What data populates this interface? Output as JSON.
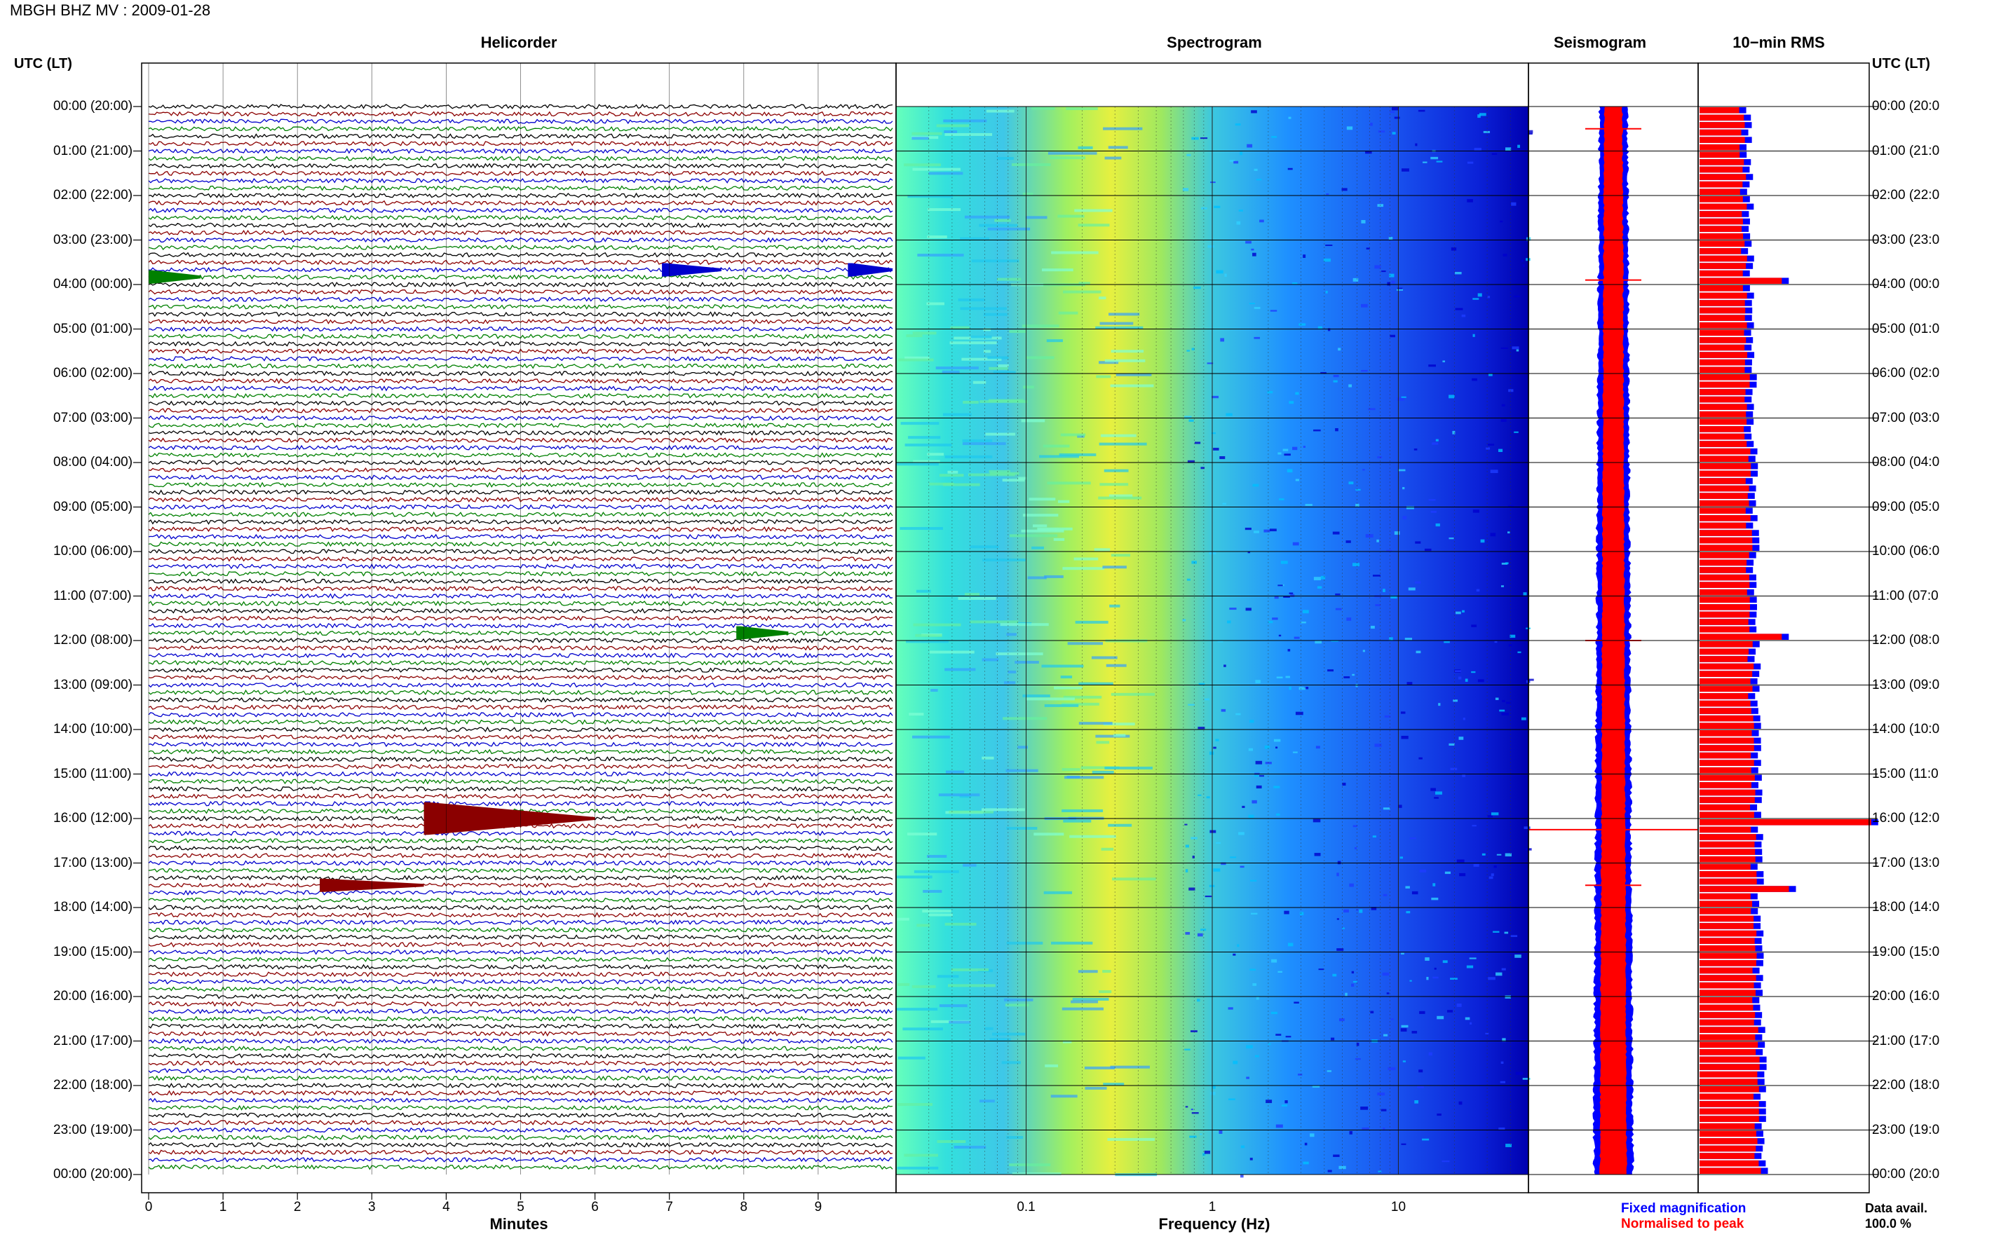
{
  "title": "MBGH BHZ MV : 2009-01-28",
  "panel_titles": {
    "helicorder": "Helicorder",
    "spectrogram": "Spectrogram",
    "seismogram": "Seismogram",
    "rms": "10−min RMS"
  },
  "utc_header": "UTC (LT)",
  "time_labels": [
    "00:00 (20:00)",
    "01:00 (21:00)",
    "02:00 (22:00)",
    "03:00 (23:00)",
    "04:00 (00:00)",
    "05:00 (01:00)",
    "06:00 (02:00)",
    "07:00 (03:00)",
    "08:00 (04:00)",
    "09:00 (05:00)",
    "10:00 (06:00)",
    "11:00 (07:00)",
    "12:00 (08:00)",
    "13:00 (09:00)",
    "14:00 (10:00)",
    "15:00 (11:00)",
    "16:00 (12:00)",
    "17:00 (13:00)",
    "18:00 (14:00)",
    "19:00 (15:00)",
    "20:00 (16:00)",
    "21:00 (17:00)",
    "22:00 (18:00)",
    "23:00 (19:00)",
    "00:00 (20:00)"
  ],
  "right_time_labels": [
    "00:00 (20:0",
    "01:00 (21:0",
    "02:00 (22:0",
    "03:00 (23:0",
    "04:00 (00:0",
    "05:00 (01:0",
    "06:00 (02:0",
    "07:00 (03:0",
    "08:00 (04:0",
    "09:00 (05:0",
    "10:00 (06:0",
    "11:00 (07:0",
    "12:00 (08:0",
    "13:00 (09:0",
    "14:00 (10:0",
    "15:00 (11:0",
    "16:00 (12:0",
    "17:00 (13:0",
    "18:00 (14:0",
    "19:00 (15:0",
    "20:00 (16:0",
    "21:00 (17:0",
    "22:00 (18:0",
    "23:00 (19:0",
    "00:00 (20:0"
  ],
  "legend": {
    "fixed": "Fixed magnification",
    "normalised": "Normalised to peak",
    "fixed_color": "#0000ff",
    "normalised_color": "#ff0000"
  },
  "data_avail": {
    "label": "Data avail.",
    "value": "100.0 %"
  },
  "chart_data": [
    {
      "type": "line",
      "panel": "helicorder",
      "xlabel": "Minutes",
      "x_ticks": [
        "0",
        "1",
        "2",
        "3",
        "4",
        "5",
        "6",
        "7",
        "8",
        "9"
      ],
      "xlim": [
        0,
        10
      ],
      "rows_per_hour": 6,
      "row_colors": [
        "#000000",
        "#8b0000",
        "#0000cd",
        "#008000"
      ],
      "events": [
        {
          "hour": 3.83,
          "minute_start": 0.0,
          "minute_end": 0.7,
          "color": "#008000"
        },
        {
          "hour": 3.67,
          "minute_start": 6.9,
          "minute_end": 7.7,
          "color": "#0000cd"
        },
        {
          "hour": 3.67,
          "minute_start": 9.4,
          "minute_end": 10.0,
          "color": "#0000cd"
        },
        {
          "hour": 11.83,
          "minute_start": 7.9,
          "minute_end": 8.6,
          "color": "#008000"
        },
        {
          "hour": 16.0,
          "minute_start": 3.7,
          "minute_end": 6.0,
          "color": "#8b0000"
        },
        {
          "hour": 17.5,
          "minute_start": 2.3,
          "minute_end": 3.7,
          "color": "#8b0000"
        }
      ]
    },
    {
      "type": "heatmap",
      "panel": "spectrogram",
      "xlabel": "Frequency (Hz)",
      "x_ticks": [
        "0.1",
        "1",
        "10"
      ],
      "xscale": "log",
      "xlim": [
        0.02,
        50
      ],
      "colormap": [
        "#00008b",
        "#0000ff",
        "#1e90ff",
        "#00ced1",
        "#7fffd4",
        "#adff2f",
        "#ffff00"
      ]
    },
    {
      "type": "line",
      "panel": "seismogram",
      "colors": [
        "#0000ff",
        "#ff0000"
      ],
      "spikes_hours": [
        0.5,
        3.9,
        12.0,
        16.25,
        17.5
      ]
    },
    {
      "type": "bar",
      "panel": "rms",
      "orientation": "horizontal",
      "bins_per_hour": 6,
      "series": [
        {
          "name": "Fixed magnification",
          "color": "#0000ff"
        },
        {
          "name": "Normalised to peak",
          "color": "#ff0000"
        }
      ],
      "peaks": [
        {
          "hour": 3.83,
          "value": 1.15
        },
        {
          "hour": 11.83,
          "value": 1.15
        },
        {
          "hour": 16.0,
          "value": 2.4
        },
        {
          "hour": 17.5,
          "value": 1.25
        }
      ]
    }
  ]
}
